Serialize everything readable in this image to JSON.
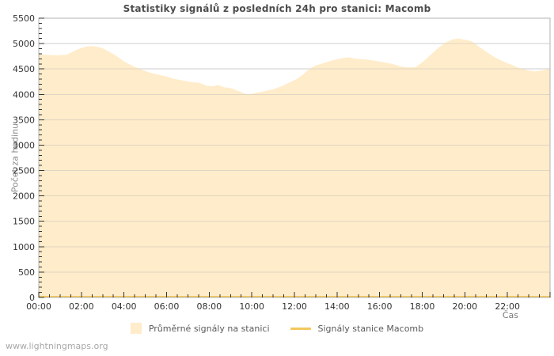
{
  "page": {
    "watermark": "www.lightningmaps.org"
  },
  "chart_data": {
    "type": "area",
    "title": "Statistiky signálů z posledních 24h pro stanici: Macomb",
    "xlabel": "Čas",
    "ylabel": "Počet za hodinu",
    "ylim": [
      0,
      5500
    ],
    "y_tick_step": 500,
    "y_minor_step": 100,
    "x_range_hours": [
      0,
      24
    ],
    "x_tick_labels": [
      "00:00",
      "02:00",
      "04:00",
      "06:00",
      "08:00",
      "10:00",
      "12:00",
      "14:00",
      "16:00",
      "18:00",
      "20:00",
      "22:00"
    ],
    "x_major_tick_hours": 2,
    "x_minor_tick_hours": 0.5,
    "grid": "horizontal",
    "legend_position": "bottom",
    "colors": {
      "grid": "#cccccc",
      "frame": "#b3b3b3",
      "tick": "#333333",
      "tick_label": "#333333",
      "title": "#4d4d4d",
      "area_fill": "#FFE4B5",
      "line_gold": "#F2C85E"
    },
    "series": [
      {
        "name": "Průměrné signály na stanici",
        "type": "area",
        "color": "#FFE4B5",
        "opacity": 0.72,
        "points": [
          [
            0,
            4800
          ],
          [
            0.3,
            4775
          ],
          [
            0.8,
            4770
          ],
          [
            1.3,
            4780
          ],
          [
            1.8,
            4880
          ],
          [
            2.2,
            4940
          ],
          [
            2.6,
            4950
          ],
          [
            3.0,
            4910
          ],
          [
            3.3,
            4840
          ],
          [
            3.6,
            4770
          ],
          [
            4.0,
            4650
          ],
          [
            4.4,
            4560
          ],
          [
            4.8,
            4490
          ],
          [
            5.2,
            4430
          ],
          [
            5.6,
            4390
          ],
          [
            6.0,
            4350
          ],
          [
            6.4,
            4300
          ],
          [
            6.8,
            4270
          ],
          [
            7.2,
            4240
          ],
          [
            7.5,
            4230
          ],
          [
            7.9,
            4170
          ],
          [
            8.2,
            4160
          ],
          [
            8.4,
            4185
          ],
          [
            8.7,
            4140
          ],
          [
            9.0,
            4125
          ],
          [
            9.4,
            4060
          ],
          [
            9.7,
            4010
          ],
          [
            9.9,
            4000
          ],
          [
            10.2,
            4030
          ],
          [
            10.6,
            4060
          ],
          [
            11.0,
            4100
          ],
          [
            11.4,
            4160
          ],
          [
            11.8,
            4240
          ],
          [
            12.1,
            4300
          ],
          [
            12.4,
            4390
          ],
          [
            12.7,
            4500
          ],
          [
            13.0,
            4570
          ],
          [
            13.4,
            4620
          ],
          [
            13.8,
            4670
          ],
          [
            14.2,
            4710
          ],
          [
            14.5,
            4730
          ],
          [
            14.9,
            4700
          ],
          [
            15.4,
            4685
          ],
          [
            15.8,
            4660
          ],
          [
            16.2,
            4630
          ],
          [
            16.6,
            4600
          ],
          [
            17.0,
            4550
          ],
          [
            17.3,
            4530
          ],
          [
            17.7,
            4535
          ],
          [
            18.0,
            4630
          ],
          [
            18.4,
            4780
          ],
          [
            18.8,
            4930
          ],
          [
            19.1,
            5020
          ],
          [
            19.4,
            5080
          ],
          [
            19.7,
            5100
          ],
          [
            20.0,
            5075
          ],
          [
            20.3,
            5050
          ],
          [
            20.6,
            4960
          ],
          [
            21.0,
            4840
          ],
          [
            21.4,
            4730
          ],
          [
            21.8,
            4650
          ],
          [
            22.2,
            4580
          ],
          [
            22.6,
            4510
          ],
          [
            23.0,
            4470
          ],
          [
            23.3,
            4450
          ],
          [
            23.6,
            4470
          ],
          [
            24.0,
            4500
          ]
        ]
      },
      {
        "name": "Signály stanice Macomb",
        "type": "line",
        "color": "#F2C85E",
        "width": 2,
        "points": [
          [
            0,
            0
          ],
          [
            24,
            0
          ]
        ]
      }
    ]
  }
}
